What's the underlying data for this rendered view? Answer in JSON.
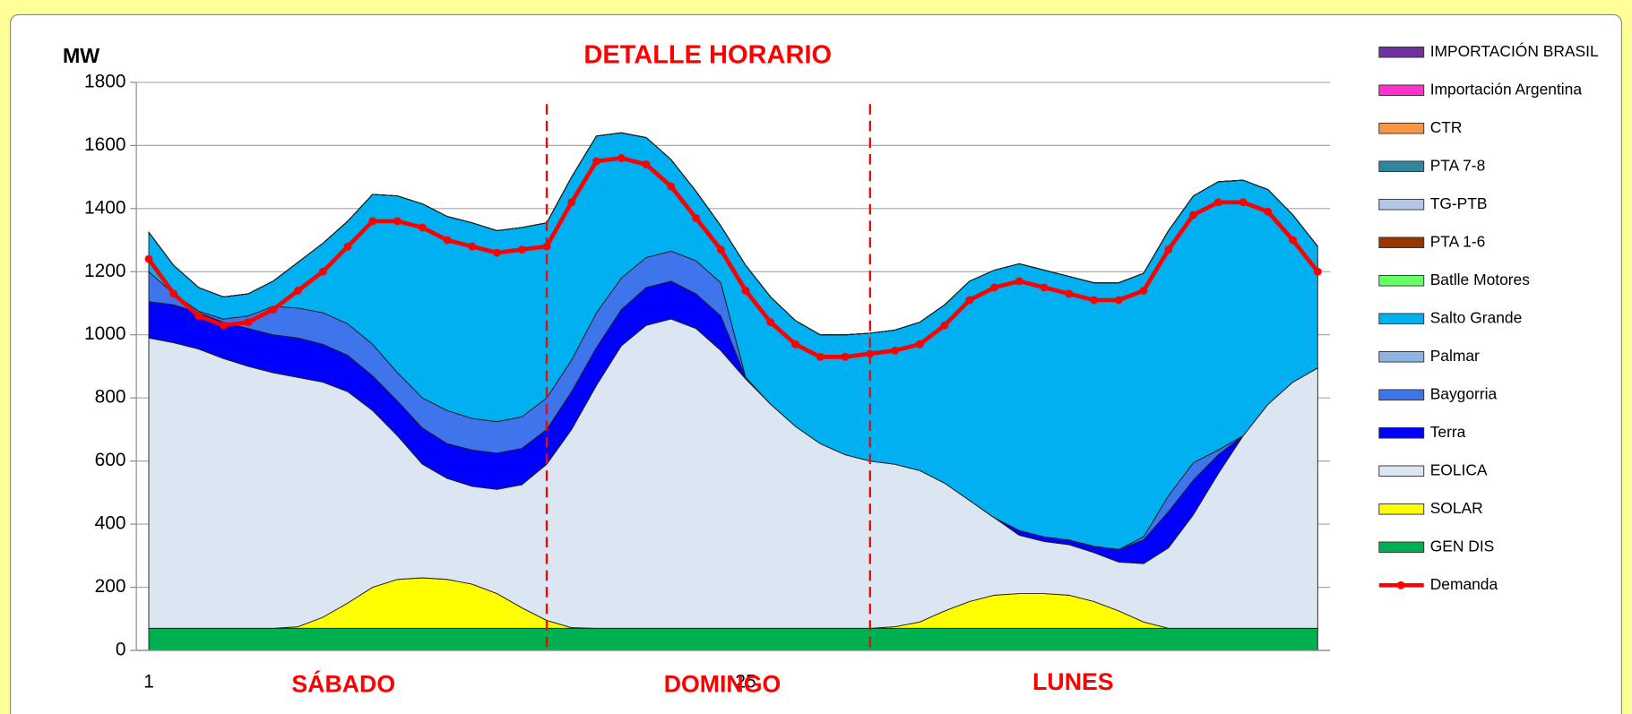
{
  "chart_data": {
    "type": "area",
    "stacked": true,
    "title": "DETALLE HORARIO",
    "y_label": "MW",
    "annotations": [
      "SÁBADO",
      "DOMINGO",
      "LUNES"
    ],
    "x": [
      1,
      2,
      3,
      4,
      5,
      6,
      7,
      8,
      9,
      10,
      11,
      12,
      13,
      14,
      15,
      16,
      17,
      18,
      19,
      20,
      21,
      22,
      23,
      24,
      25,
      26,
      27,
      28,
      29,
      30,
      31,
      32,
      33,
      34,
      35,
      36,
      37,
      38,
      39,
      40,
      41,
      42,
      43,
      44,
      45,
      46,
      47,
      48
    ],
    "xlim": [
      0.5,
      48.5
    ],
    "xticks": [
      1,
      25
    ],
    "ylim": [
      0,
      1800
    ],
    "yticks": [
      0,
      200,
      400,
      600,
      800,
      1000,
      1200,
      1400,
      1600,
      1800
    ],
    "grid": true,
    "vlines": [
      17,
      30
    ],
    "vline_color": "#ff0000",
    "series": [
      {
        "name": "GEN DIS",
        "color": "#00b050",
        "values": [
          70,
          70,
          70,
          70,
          70,
          70,
          70,
          70,
          70,
          70,
          70,
          70,
          70,
          70,
          70,
          70,
          70,
          70,
          70,
          70,
          70,
          70,
          70,
          70,
          70,
          70,
          70,
          70,
          70,
          70,
          70,
          70,
          70,
          70,
          70,
          70,
          70,
          70,
          70,
          70,
          70,
          70,
          70,
          70,
          70,
          70,
          70,
          70
        ]
      },
      {
        "name": "SOLAR",
        "color": "#ffff00",
        "values": [
          0,
          0,
          0,
          0,
          0,
          0,
          5,
          35,
          80,
          130,
          155,
          160,
          155,
          140,
          110,
          65,
          25,
          2,
          0,
          0,
          0,
          0,
          0,
          0,
          0,
          0,
          0,
          0,
          0,
          0,
          5,
          20,
          55,
          85,
          105,
          110,
          110,
          105,
          85,
          55,
          20,
          0,
          0,
          0,
          0,
          0,
          0,
          0
        ]
      },
      {
        "name": "EOLICA",
        "color": "#dce6f2",
        "values": [
          920,
          905,
          885,
          855,
          830,
          810,
          790,
          745,
          670,
          560,
          455,
          360,
          320,
          310,
          330,
          390,
          495,
          628,
          770,
          895,
          960,
          980,
          950,
          880,
          790,
          710,
          640,
          585,
          550,
          530,
          515,
          480,
          405,
          320,
          245,
          185,
          165,
          160,
          155,
          155,
          185,
          255,
          360,
          490,
          610,
          710,
          780,
          825
        ]
      },
      {
        "name": "Terra",
        "color": "#0000ff",
        "values": [
          115,
          120,
          115,
          115,
          120,
          120,
          125,
          120,
          115,
          110,
          110,
          115,
          110,
          115,
          115,
          115,
          110,
          120,
          120,
          115,
          120,
          120,
          110,
          110,
          5,
          0,
          0,
          0,
          0,
          0,
          0,
          0,
          0,
          0,
          0,
          15,
          15,
          15,
          20,
          40,
          75,
          115,
          110,
          60,
          0,
          0,
          0,
          0
        ]
      },
      {
        "name": "Baygorria",
        "color": "#3e74ec",
        "values": [
          95,
          35,
          5,
          10,
          40,
          90,
          95,
          100,
          100,
          100,
          90,
          95,
          105,
          100,
          100,
          100,
          100,
          100,
          110,
          100,
          95,
          95,
          105,
          105,
          0,
          0,
          0,
          0,
          0,
          0,
          0,
          0,
          0,
          0,
          0,
          0,
          0,
          0,
          0,
          0,
          10,
          50,
          55,
          15,
          0,
          0,
          0,
          0
        ]
      },
      {
        "name": "Palmar",
        "color": "#8db4e2",
        "values": [
          0,
          0,
          0,
          0,
          0,
          0,
          0,
          0,
          0,
          0,
          0,
          0,
          0,
          0,
          0,
          0,
          0,
          0,
          0,
          0,
          0,
          0,
          0,
          0,
          0,
          0,
          0,
          0,
          0,
          0,
          0,
          0,
          0,
          0,
          0,
          0,
          0,
          0,
          0,
          0,
          0,
          0,
          0,
          0,
          0,
          0,
          0,
          0
        ]
      },
      {
        "name": "Salto Grande",
        "color": "#00b0f0",
        "values": [
          125,
          90,
          75,
          70,
          70,
          80,
          145,
          220,
          325,
          475,
          560,
          615,
          615,
          620,
          605,
          600,
          555,
          580,
          560,
          460,
          380,
          290,
          220,
          180,
          355,
          340,
          335,
          345,
          380,
          405,
          425,
          470,
          565,
          695,
          785,
          845,
          845,
          835,
          835,
          845,
          835,
          840,
          845,
          850,
          810,
          680,
          530,
          385
        ]
      },
      {
        "name": "Batlle Motores",
        "color": "#66ff66",
        "values": [
          0,
          0,
          0,
          0,
          0,
          0,
          0,
          0,
          0,
          0,
          0,
          0,
          0,
          0,
          0,
          0,
          0,
          0,
          0,
          0,
          0,
          0,
          0,
          0,
          0,
          0,
          0,
          0,
          0,
          0,
          0,
          0,
          0,
          0,
          0,
          0,
          0,
          0,
          0,
          0,
          0,
          0,
          0,
          0,
          0,
          0,
          0,
          0
        ]
      },
      {
        "name": "PTA 1-6",
        "color": "#993300",
        "values": [
          0,
          0,
          0,
          0,
          0,
          0,
          0,
          0,
          0,
          0,
          0,
          0,
          0,
          0,
          0,
          0,
          0,
          0,
          0,
          0,
          0,
          0,
          0,
          0,
          0,
          0,
          0,
          0,
          0,
          0,
          0,
          0,
          0,
          0,
          0,
          0,
          0,
          0,
          0,
          0,
          0,
          0,
          0,
          0,
          0,
          0,
          0,
          0
        ]
      },
      {
        "name": "TG-PTB",
        "color": "#b4c7e7",
        "values": [
          0,
          0,
          0,
          0,
          0,
          0,
          0,
          0,
          0,
          0,
          0,
          0,
          0,
          0,
          0,
          0,
          0,
          0,
          0,
          0,
          0,
          0,
          0,
          0,
          0,
          0,
          0,
          0,
          0,
          0,
          0,
          0,
          0,
          0,
          0,
          0,
          0,
          0,
          0,
          0,
          0,
          0,
          0,
          0,
          0,
          0,
          0,
          0
        ]
      },
      {
        "name": "PTA 7-8",
        "color": "#31859c",
        "values": [
          0,
          0,
          0,
          0,
          0,
          0,
          0,
          0,
          0,
          0,
          0,
          0,
          0,
          0,
          0,
          0,
          0,
          0,
          0,
          0,
          0,
          0,
          0,
          0,
          0,
          0,
          0,
          0,
          0,
          0,
          0,
          0,
          0,
          0,
          0,
          0,
          0,
          0,
          0,
          0,
          0,
          0,
          0,
          0,
          0,
          0,
          0,
          0
        ]
      },
      {
        "name": "CTR",
        "color": "#f79646",
        "values": [
          0,
          0,
          0,
          0,
          0,
          0,
          0,
          0,
          0,
          0,
          0,
          0,
          0,
          0,
          0,
          0,
          0,
          0,
          0,
          0,
          0,
          0,
          0,
          0,
          0,
          0,
          0,
          0,
          0,
          0,
          0,
          0,
          0,
          0,
          0,
          0,
          0,
          0,
          0,
          0,
          0,
          0,
          0,
          0,
          0,
          0,
          0,
          0
        ]
      },
      {
        "name": "Importación Argentina",
        "color": "#ff33cc",
        "values": [
          0,
          0,
          0,
          0,
          0,
          0,
          0,
          0,
          0,
          0,
          0,
          0,
          0,
          0,
          0,
          0,
          0,
          0,
          0,
          0,
          0,
          0,
          0,
          0,
          0,
          0,
          0,
          0,
          0,
          0,
          0,
          0,
          0,
          0,
          0,
          0,
          0,
          0,
          0,
          0,
          0,
          0,
          0,
          0,
          0,
          0,
          0,
          0
        ]
      },
      {
        "name": "IMPORTACIÓN BRASIL",
        "color": "#7030a0",
        "values": [
          0,
          0,
          0,
          0,
          0,
          0,
          0,
          0,
          0,
          0,
          0,
          0,
          0,
          0,
          0,
          0,
          0,
          0,
          0,
          0,
          0,
          0,
          0,
          0,
          0,
          0,
          0,
          0,
          0,
          0,
          0,
          0,
          0,
          0,
          0,
          0,
          0,
          0,
          0,
          0,
          0,
          0,
          0,
          0,
          0,
          0,
          0,
          0
        ]
      },
      {
        "name": "Demanda",
        "color": "#ff0000",
        "type": "line",
        "values": [
          1240,
          1130,
          1060,
          1030,
          1040,
          1080,
          1140,
          1200,
          1280,
          1360,
          1360,
          1340,
          1300,
          1280,
          1260,
          1270,
          1280,
          1420,
          1550,
          1560,
          1540,
          1470,
          1370,
          1270,
          1140,
          1040,
          970,
          930,
          930,
          940,
          950,
          970,
          1030,
          1110,
          1150,
          1170,
          1150,
          1130,
          1110,
          1110,
          1140,
          1270,
          1380,
          1420,
          1420,
          1390,
          1300,
          1200
        ]
      }
    ]
  }
}
